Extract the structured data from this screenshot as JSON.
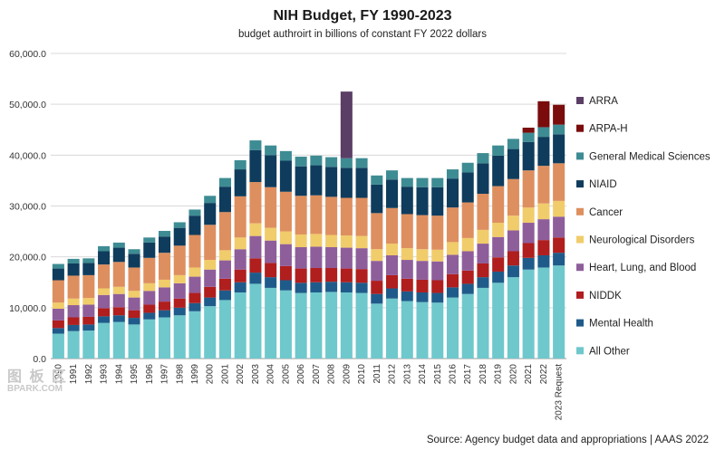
{
  "chart_data": {
    "type": "bar",
    "stacked": true,
    "title": "NIH Budget, FY 1990-2023",
    "subtitle": "budget authroirt in billions of constant FY 2022 dollars",
    "source": "Source: Agency budget data and appropriations | AAAS 2022",
    "ylim": [
      0,
      60000
    ],
    "yticks": [
      "0.0",
      "10,000.0",
      "20,000.0",
      "30,000.0",
      "40,000.0",
      "50,000.0",
      "60,000.0"
    ],
    "grid": true,
    "legend_position": "right",
    "categories": [
      "1990",
      "1991",
      "1992",
      "1993",
      "1994",
      "1995",
      "1996",
      "1997",
      "1998",
      "1999",
      "2000",
      "2001",
      "2002",
      "2003",
      "2004",
      "2005",
      "2006",
      "2007",
      "2008",
      "2009",
      "2010",
      "2011",
      "2012",
      "2013",
      "2014",
      "2015",
      "2016",
      "2017",
      "2018",
      "2019",
      "2020",
      "2021",
      "2022",
      "2023 Request"
    ],
    "series": [
      {
        "name": "All Other",
        "color": "#6fc8cc",
        "values": [
          4900,
          5400,
          5500,
          7000,
          7200,
          6700,
          7700,
          8100,
          8500,
          9300,
          10300,
          11500,
          13000,
          14700,
          13900,
          13400,
          12900,
          13000,
          13100,
          13000,
          12900,
          10800,
          11800,
          11300,
          11100,
          11000,
          12000,
          12700,
          13900,
          14900,
          16000,
          17500,
          17900,
          18300
        ]
      },
      {
        "name": "Mental Health",
        "color": "#1f5b8a",
        "values": [
          1100,
          1200,
          1200,
          1300,
          1300,
          1300,
          1300,
          1400,
          1500,
          1600,
          1700,
          1900,
          2000,
          2200,
          2100,
          2000,
          2000,
          2000,
          2000,
          2000,
          2000,
          1900,
          2000,
          1900,
          1900,
          1900,
          2000,
          2000,
          2100,
          2200,
          2300,
          2300,
          2400,
          2500
        ]
      },
      {
        "name": "NIDDK",
        "color": "#b01e1e",
        "values": [
          1500,
          1500,
          1500,
          1600,
          1600,
          1500,
          1600,
          1700,
          1800,
          2000,
          2100,
          2300,
          2500,
          2800,
          2800,
          2800,
          2800,
          2800,
          2700,
          2700,
          2700,
          2600,
          2600,
          2500,
          2500,
          2500,
          2600,
          2600,
          2700,
          2800,
          2800,
          2900,
          3000,
          3000
        ]
      },
      {
        "name": "Heart, Lung, and Blood",
        "color": "#8e5e9b",
        "values": [
          2300,
          2400,
          2400,
          2600,
          2600,
          2500,
          2700,
          2800,
          3000,
          3200,
          3400,
          3600,
          4000,
          4400,
          4400,
          4300,
          4200,
          4200,
          4100,
          4100,
          4100,
          3900,
          3900,
          3700,
          3700,
          3700,
          3800,
          3800,
          3900,
          4000,
          4100,
          4000,
          4100,
          4100
        ]
      },
      {
        "name": "Neurological Disorders",
        "color": "#f1cc6a",
        "values": [
          1200,
          1300,
          1300,
          1300,
          1400,
          1300,
          1500,
          1500,
          1600,
          1800,
          1900,
          2000,
          2300,
          2500,
          2500,
          2500,
          2500,
          2500,
          2400,
          2400,
          2400,
          2300,
          2300,
          2300,
          2300,
          2300,
          2500,
          2600,
          2700,
          2800,
          2900,
          3000,
          3100,
          3100
        ]
      },
      {
        "name": "Cancer",
        "color": "#de8f5f",
        "values": [
          4400,
          4500,
          4500,
          4700,
          4900,
          4600,
          5000,
          5300,
          5800,
          6400,
          6900,
          7500,
          8100,
          8100,
          8000,
          7800,
          7600,
          7600,
          7500,
          7400,
          7500,
          7100,
          7000,
          6700,
          6700,
          6700,
          6800,
          7000,
          7100,
          7200,
          7200,
          7300,
          7400,
          7400
        ]
      },
      {
        "name": "NIAID",
        "color": "#0f3c5c",
        "values": [
          2300,
          2400,
          2400,
          2600,
          2800,
          2700,
          3000,
          3200,
          3500,
          3800,
          4300,
          5000,
          5300,
          6300,
          6300,
          6100,
          5800,
          5900,
          5900,
          5900,
          5900,
          5600,
          5600,
          5400,
          5500,
          5600,
          5700,
          5900,
          6000,
          6000,
          5900,
          5600,
          5700,
          5700
        ]
      },
      {
        "name": "General Medical Sciences",
        "color": "#3e8c93",
        "values": [
          900,
          900,
          900,
          1000,
          1000,
          900,
          1000,
          1100,
          1100,
          1200,
          1400,
          1700,
          1800,
          1900,
          1900,
          1900,
          1900,
          1900,
          1900,
          1900,
          1900,
          1800,
          1800,
          1700,
          1800,
          1800,
          1800,
          1900,
          2000,
          2000,
          2000,
          1800,
          1900,
          1900
        ]
      },
      {
        "name": "ARPA-H",
        "color": "#7a0c0c",
        "values": [
          0,
          0,
          0,
          0,
          0,
          0,
          0,
          0,
          0,
          0,
          0,
          0,
          0,
          0,
          0,
          0,
          0,
          0,
          0,
          0,
          0,
          0,
          0,
          0,
          0,
          0,
          0,
          0,
          0,
          0,
          0,
          1000,
          5100,
          3900
        ]
      },
      {
        "name": "ARRA",
        "color": "#5a3e66",
        "values": [
          0,
          0,
          0,
          0,
          0,
          0,
          0,
          0,
          0,
          0,
          0,
          0,
          0,
          0,
          0,
          0,
          0,
          0,
          0,
          13100,
          0,
          0,
          0,
          0,
          0,
          0,
          0,
          0,
          0,
          0,
          0,
          0,
          0,
          0
        ]
      }
    ],
    "legend_order": [
      "ARRA",
      "ARPA-H",
      "General Medical Sciences",
      "NIAID",
      "Cancer",
      "Neurological Disorders",
      "Heart, Lung, and Blood",
      "NIDDK",
      "Mental Health",
      "All Other"
    ]
  },
  "watermark": {
    "line1": "图 板 区",
    "line2": "BPARK.COM"
  }
}
